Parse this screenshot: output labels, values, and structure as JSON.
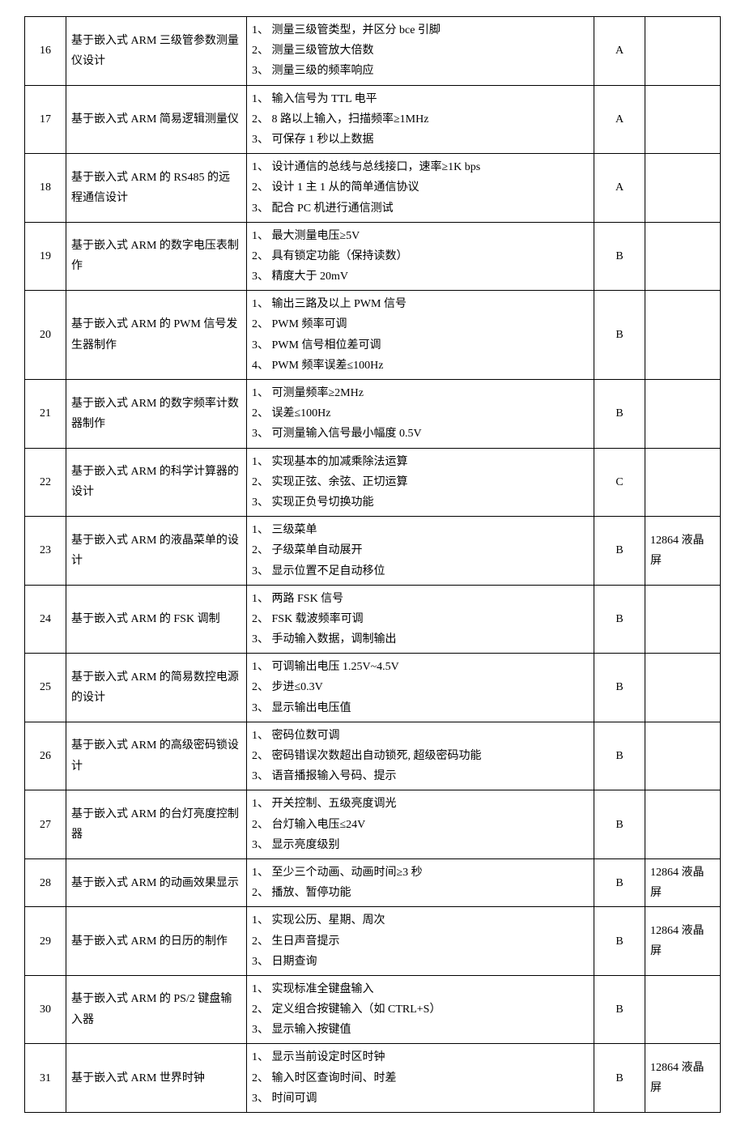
{
  "rows": [
    {
      "num": "16",
      "title": "基于嵌入式 ARM 三级管参数测量仪设计",
      "desc": [
        "1、 测量三级管类型，并区分 bce 引脚",
        "2、 测量三级管放大倍数",
        "3、 测量三级的频率响应"
      ],
      "grade": "A",
      "note": ""
    },
    {
      "num": "17",
      "title": "基于嵌入式 ARM 简易逻辑测量仪",
      "desc": [
        "1、 输入信号为 TTL 电平",
        "2、 8 路以上输入，扫描频率≥1MHz",
        "3、 可保存 1 秒以上数据"
      ],
      "grade": "A",
      "note": ""
    },
    {
      "num": "18",
      "title": "基于嵌入式 ARM 的 RS485 的远程通信设计",
      "desc": [
        "1、 设计通信的总线与总线接口，速率≥1K bps",
        "2、 设计 1 主 1 从的简单通信协议",
        "3、 配合 PC 机进行通信测试"
      ],
      "grade": "A",
      "note": ""
    },
    {
      "num": "19",
      "title": "基于嵌入式 ARM 的数字电压表制作",
      "desc": [
        "1、 最大测量电压≥5V",
        "2、 具有锁定功能（保持读数）",
        "3、 精度大于 20mV"
      ],
      "grade": "B",
      "note": ""
    },
    {
      "num": "20",
      "title": "基于嵌入式 ARM 的 PWM 信号发生器制作",
      "desc": [
        "1、 输出三路及以上 PWM 信号",
        "2、 PWM 频率可调",
        "3、 PWM 信号相位差可调",
        "4、 PWM 频率误差≤100Hz"
      ],
      "grade": "B",
      "note": ""
    },
    {
      "num": "21",
      "title": "基于嵌入式 ARM 的数字频率计数器制作",
      "desc": [
        "1、 可测量频率≥2MHz",
        "2、 误差≤100Hz",
        "3、 可测量输入信号最小幅度 0.5V"
      ],
      "grade": "B",
      "note": ""
    },
    {
      "num": "22",
      "title": "基于嵌入式 ARM 的科学计算器的设计",
      "desc": [
        "1、 实现基本的加减乘除法运算",
        "2、 实现正弦、余弦、正切运算",
        "3、 实现正负号切换功能"
      ],
      "grade": "C",
      "note": ""
    },
    {
      "num": "23",
      "title": "基于嵌入式 ARM 的液晶菜单的设计",
      "desc": [
        "1、 三级菜单",
        "2、 子级菜单自动展开",
        "3、 显示位置不足自动移位"
      ],
      "grade": "B",
      "note": "12864 液晶屏"
    },
    {
      "num": "24",
      "title": "基于嵌入式 ARM 的 FSK 调制",
      "desc": [
        "1、 两路 FSK 信号",
        "2、 FSK 载波频率可调",
        "3、 手动输入数据，调制输出"
      ],
      "grade": "B",
      "note": ""
    },
    {
      "num": "25",
      "title": "基于嵌入式 ARM 的简易数控电源的设计",
      "desc": [
        "1、 可调输出电压 1.25V~4.5V",
        "2、 步进≤0.3V",
        "3、 显示输出电压值"
      ],
      "grade": "B",
      "note": ""
    },
    {
      "num": "26",
      "title": "基于嵌入式 ARM 的高级密码锁设计",
      "desc": [
        "1、 密码位数可调",
        "2、 密码错误次数超出自动锁死, 超级密码功能",
        "3、 语音播报输入号码、提示"
      ],
      "grade": "B",
      "note": ""
    },
    {
      "num": "27",
      "title": "基于嵌入式 ARM 的台灯亮度控制器",
      "desc": [
        "1、 开关控制、五级亮度调光",
        "2、 台灯输入电压≤24V",
        "3、 显示亮度级别"
      ],
      "grade": "B",
      "note": ""
    },
    {
      "num": "28",
      "title": "基于嵌入式 ARM 的动画效果显示",
      "desc": [
        "1、 至少三个动画、动画时间≥3 秒",
        "2、 播放、暂停功能"
      ],
      "grade": "B",
      "note": "12864 液晶屏"
    },
    {
      "num": "29",
      "title": "基于嵌入式 ARM 的日历的制作",
      "desc": [
        "1、 实现公历、星期、周次",
        "2、 生日声音提示",
        "3、 日期查询"
      ],
      "grade": "B",
      "note": "12864 液晶屏"
    },
    {
      "num": "30",
      "title": "基于嵌入式 ARM 的 PS/2 键盘输入器",
      "desc": [
        "1、 实现标准全键盘输入",
        "2、 定义组合按键输入（如 CTRL+S）",
        "3、 显示输入按键值"
      ],
      "grade": "B",
      "note": ""
    },
    {
      "num": "31",
      "title": "基于嵌入式 ARM 世界时钟",
      "desc": [
        "1、 显示当前设定时区时钟",
        "2、 输入时区查询时间、时差",
        "3、 时间可调"
      ],
      "grade": "B",
      "note": "12864 液晶屏"
    }
  ]
}
